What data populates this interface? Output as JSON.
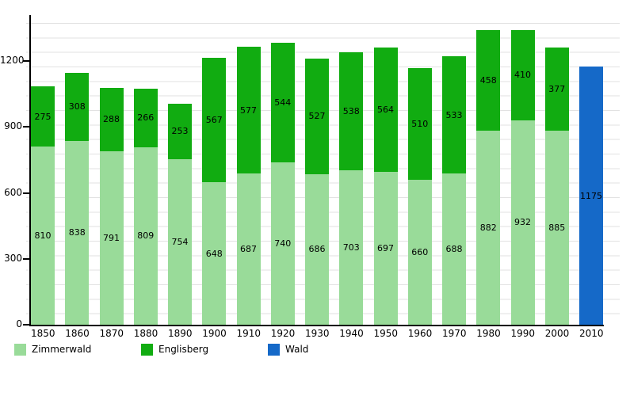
{
  "chart_data": {
    "type": "bar",
    "stacked": true,
    "title": "",
    "categories": [
      "1850",
      "1860",
      "1870",
      "1880",
      "1890",
      "1900",
      "1910",
      "1920",
      "1930",
      "1940",
      "1950",
      "1960",
      "1970",
      "1980",
      "1990",
      "2000",
      "2010"
    ],
    "series": [
      {
        "name": "Zimmerwald",
        "color": "#99db99",
        "values": [
          810,
          838,
          791,
          809,
          754,
          648,
          687,
          740,
          686,
          703,
          697,
          660,
          688,
          882,
          932,
          885,
          null
        ]
      },
      {
        "name": "Englisberg",
        "color": "#11ac11",
        "values": [
          275,
          308,
          288,
          266,
          253,
          567,
          577,
          544,
          527,
          538,
          564,
          510,
          533,
          458,
          410,
          377,
          null
        ]
      },
      {
        "name": "Wald",
        "color": "#1569c8",
        "values": [
          null,
          null,
          null,
          null,
          null,
          null,
          null,
          null,
          null,
          null,
          null,
          null,
          null,
          null,
          null,
          null,
          1175
        ]
      }
    ],
    "y_ticks": [
      0,
      300,
      600,
      900,
      1200
    ],
    "ylim": [
      0,
      1405
    ],
    "grid": "horizontal-minor",
    "legend_position": "bottom",
    "xlabel": "",
    "ylabel": ""
  },
  "legend": {
    "items": [
      {
        "label": "Zimmerwald",
        "color": "#99db99"
      },
      {
        "label": "Englisberg",
        "color": "#11ac11"
      },
      {
        "label": "Wald",
        "color": "#1569c8"
      }
    ],
    "item_left_offsets": [
      18,
      178,
      338
    ]
  },
  "colors": {
    "background": "#ffffff",
    "axis": "#000000",
    "gridline": "#e2e2e2",
    "text": "#000000"
  }
}
